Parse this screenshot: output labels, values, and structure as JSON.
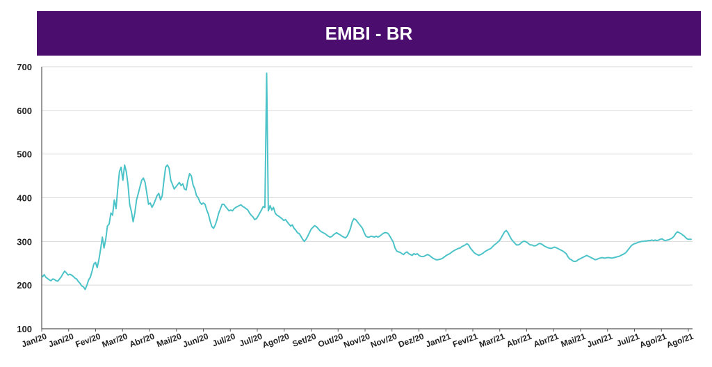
{
  "chart_data": {
    "type": "line",
    "title": "EMBI - BR",
    "xlabel": "",
    "ylabel": "",
    "ylim": [
      100,
      700
    ],
    "yticks": [
      100,
      200,
      300,
      400,
      500,
      600,
      700
    ],
    "grid": true,
    "legend": "none",
    "colors": {
      "title_bg": "#4b0e6e",
      "title_text": "#ffffff",
      "line": "#4cc3c8",
      "grid": "#d9d9d9",
      "axis": "#555555"
    },
    "xtick_labels": [
      "Jan/20",
      "Jan/20",
      "Fev/20",
      "Mar/20",
      "Abr/20",
      "Mai/20",
      "Jun/20",
      "Jul/20",
      "Jul/20",
      "Ago/20",
      "Set/20",
      "Out/20",
      "Nov/20",
      "Nov/20",
      "Dez/20",
      "Jan/21",
      "Fev/21",
      "Mar/21",
      "Abr/21",
      "Abr/21",
      "Mai/21",
      "Jun/21",
      "Jul/21",
      "Ago/21",
      "Ago/21"
    ],
    "series": [
      {
        "values": [
          219,
          224,
          218,
          215,
          212,
          210,
          214,
          213,
          210,
          209,
          214,
          219,
          226,
          232,
          228,
          223,
          225,
          223,
          220,
          216,
          214,
          208,
          204,
          198,
          196,
          190,
          200,
          212,
          218,
          232,
          248,
          252,
          240,
          258,
          282,
          310,
          285,
          305,
          335,
          340,
          365,
          360,
          395,
          375,
          420,
          460,
          470,
          440,
          475,
          460,
          430,
          385,
          368,
          345,
          365,
          395,
          410,
          425,
          440,
          445,
          435,
          410,
          385,
          388,
          378,
          385,
          395,
          405,
          410,
          395,
          405,
          440,
          470,
          475,
          468,
          440,
          430,
          420,
          425,
          430,
          435,
          428,
          432,
          420,
          418,
          440,
          455,
          450,
          430,
          420,
          405,
          400,
          390,
          385,
          388,
          385,
          372,
          362,
          346,
          334,
          330,
          338,
          350,
          365,
          375,
          385,
          385,
          380,
          375,
          370,
          372,
          370,
          375,
          378,
          380,
          382,
          384,
          380,
          378,
          375,
          372,
          365,
          360,
          356,
          350,
          352,
          358,
          365,
          372,
          380,
          378,
          685,
          370,
          382,
          372,
          378,
          365,
          360,
          358,
          355,
          352,
          348,
          350,
          345,
          340,
          335,
          338,
          330,
          326,
          320,
          318,
          312,
          305,
          300,
          305,
          312,
          320,
          328,
          332,
          336,
          334,
          330,
          325,
          322,
          320,
          318,
          315,
          312,
          310,
          311,
          315,
          318,
          320,
          317,
          315,
          312,
          310,
          308,
          312,
          320,
          330,
          345,
          352,
          350,
          345,
          340,
          335,
          330,
          320,
          312,
          310,
          310,
          312,
          311,
          310,
          312,
          310,
          312,
          315,
          318,
          320,
          320,
          318,
          312,
          305,
          298,
          285,
          278,
          276,
          275,
          272,
          270,
          274,
          276,
          272,
          270,
          268,
          272,
          270,
          272,
          268,
          266,
          265,
          266,
          268,
          270,
          268,
          265,
          262,
          260,
          258,
          258,
          259,
          260,
          262,
          265,
          268,
          270,
          272,
          275,
          278,
          280,
          282,
          284,
          285,
          288,
          290,
          292,
          295,
          292,
          285,
          280,
          275,
          272,
          270,
          268,
          270,
          272,
          275,
          278,
          280,
          282,
          284,
          288,
          292,
          295,
          298,
          302,
          308,
          315,
          322,
          325,
          320,
          312,
          305,
          300,
          296,
          292,
          292,
          294,
          298,
          300,
          300,
          298,
          295,
          292,
          292,
          290,
          290,
          292,
          295,
          295,
          293,
          290,
          288,
          286,
          285,
          284,
          285,
          287,
          286,
          284,
          282,
          280,
          278,
          275,
          272,
          265,
          260,
          258,
          255,
          254,
          255,
          258,
          260,
          262,
          264,
          266,
          268,
          266,
          264,
          262,
          260,
          258,
          259,
          261,
          262,
          263,
          262,
          262,
          263,
          263,
          262,
          262,
          263,
          264,
          265,
          266,
          268,
          270,
          272,
          275,
          280,
          285,
          290,
          293,
          295,
          296,
          298,
          299,
          300,
          300,
          301,
          301,
          302,
          302,
          303,
          302,
          303,
          302,
          303,
          305,
          306,
          303,
          302,
          303,
          304,
          306,
          308,
          312,
          318,
          322,
          320,
          318,
          315,
          312,
          308,
          305,
          305,
          305
        ]
      }
    ]
  }
}
